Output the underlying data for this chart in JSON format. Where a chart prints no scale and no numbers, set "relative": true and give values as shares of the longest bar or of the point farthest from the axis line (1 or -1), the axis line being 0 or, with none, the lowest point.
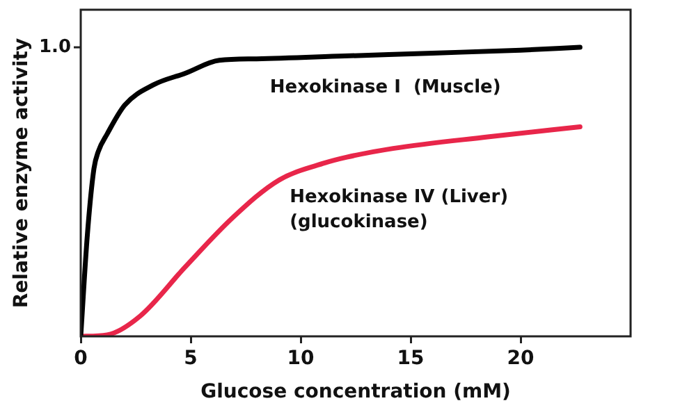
{
  "chart_data": {
    "type": "line",
    "xlabel": "Glucose concentration (mM)",
    "ylabel": "Relative enzyme activity",
    "xlim": [
      0,
      25
    ],
    "xticks": [
      0,
      5,
      10,
      15,
      20
    ],
    "relative": true,
    "annotations": [
      "1.0"
    ],
    "grid": false,
    "legend": false,
    "marker": "none",
    "line_style": "solid",
    "series": [
      {
        "name": "Hexokinase I  (Muscle)",
        "color": "#000000",
        "x": [
          0,
          0.3,
          0.6,
          0.8,
          1.2,
          2,
          3.3,
          4.75,
          6.3,
          8,
          12,
          16,
          20,
          22.7
        ],
        "values": [
          0,
          0.35,
          0.58,
          0.64,
          0.7,
          0.8,
          0.87,
          0.91,
          0.955,
          0.96,
          0.97,
          0.98,
          0.99,
          1.0
        ]
      },
      {
        "name": "Hexokinase IV (Liver)\n(glucokinase)",
        "color": "#e8264a",
        "x": [
          0,
          1.2,
          2.7,
          4.75,
          6.9,
          9,
          11.1,
          12.1,
          14.2,
          18.5,
          22.7
        ],
        "values": [
          0,
          0.005,
          0.07,
          0.24,
          0.41,
          0.54,
          0.6,
          0.62,
          0.65,
          0.69,
          0.725
        ]
      }
    ]
  }
}
